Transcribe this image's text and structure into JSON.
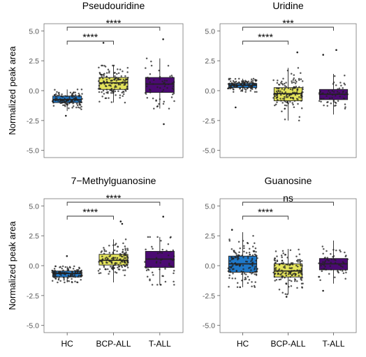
{
  "chart_data": [
    {
      "type": "box",
      "title": "Pseudouridine",
      "ylabel": "Normalized peak area",
      "ylim": [
        -5.6,
        5.6
      ],
      "yticks": [
        -5.0,
        -2.5,
        0.0,
        2.5,
        5.0
      ],
      "categories": [
        "HC",
        "BCP-ALL",
        "T-ALL"
      ],
      "colors": [
        "#1f78c8",
        "#e3e35b",
        "#4b0a72"
      ],
      "boxes": [
        {
          "q1": -1.0,
          "median": -0.75,
          "q3": -0.45,
          "whisker_low": -1.7,
          "whisker_high": 0.1,
          "n": 120
        },
        {
          "q1": 0.1,
          "median": 0.65,
          "q3": 1.1,
          "whisker_low": -1.0,
          "whisker_high": 2.1,
          "n": 140
        },
        {
          "q1": -0.15,
          "median": 0.55,
          "q3": 1.1,
          "whisker_low": -1.5,
          "whisker_high": 2.7,
          "n": 60
        }
      ],
      "outliers": [
        [
          1,
          4.0
        ],
        [
          2,
          4.3
        ],
        [
          2,
          -2.8
        ],
        [
          0,
          -2.1
        ]
      ],
      "comparisons": [
        {
          "from": "HC",
          "to": "BCP-ALL",
          "label": "****"
        },
        {
          "from": "HC",
          "to": "T-ALL",
          "label": "****"
        }
      ]
    },
    {
      "type": "box",
      "title": "Uridine",
      "ylabel": "",
      "ylim": [
        -5.6,
        5.6
      ],
      "yticks": [
        -5.0,
        -2.5,
        0.0,
        2.5,
        5.0
      ],
      "categories": [
        "HC",
        "BCP-ALL",
        "T-ALL"
      ],
      "colors": [
        "#1f78c8",
        "#e3e35b",
        "#4b0a72"
      ],
      "boxes": [
        {
          "q1": 0.25,
          "median": 0.45,
          "q3": 0.6,
          "whisker_low": -0.1,
          "whisker_high": 1.0,
          "n": 120
        },
        {
          "q1": -0.85,
          "median": -0.25,
          "q3": 0.25,
          "whisker_low": -2.5,
          "whisker_high": 1.9,
          "n": 140
        },
        {
          "q1": -0.75,
          "median": -0.3,
          "q3": 0.1,
          "whisker_low": -2.0,
          "whisker_high": 1.4,
          "n": 60
        }
      ],
      "outliers": [
        [
          1,
          3.2
        ],
        [
          2,
          3.4
        ],
        [
          2,
          3.0
        ],
        [
          0,
          -1.4
        ]
      ],
      "comparisons": [
        {
          "from": "HC",
          "to": "BCP-ALL",
          "label": "****"
        },
        {
          "from": "HC",
          "to": "T-ALL",
          "label": "***"
        }
      ]
    },
    {
      "type": "box",
      "title": "7−Methylguanosine",
      "ylabel": "Normalized peak area",
      "ylim": [
        -5.6,
        5.6
      ],
      "yticks": [
        -5.0,
        -2.5,
        0.0,
        2.5,
        5.0
      ],
      "categories": [
        "HC",
        "BCP-ALL",
        "T-ALL"
      ],
      "colors": [
        "#1f78c8",
        "#e3e35b",
        "#4b0a72"
      ],
      "boxes": [
        {
          "q1": -0.95,
          "median": -0.65,
          "q3": -0.45,
          "whisker_low": -1.4,
          "whisker_high": -0.05,
          "n": 120
        },
        {
          "q1": 0.05,
          "median": 0.45,
          "q3": 0.95,
          "whisker_low": -1.4,
          "whisker_high": 2.2,
          "n": 140
        },
        {
          "q1": -0.15,
          "median": 0.55,
          "q3": 1.2,
          "whisker_low": -1.6,
          "whisker_high": 2.4,
          "n": 60
        }
      ],
      "outliers": [
        [
          1,
          3.7
        ],
        [
          1,
          3.5
        ],
        [
          2,
          4.1
        ],
        [
          0,
          0.8
        ]
      ],
      "comparisons": [
        {
          "from": "HC",
          "to": "BCP-ALL",
          "label": "****"
        },
        {
          "from": "HC",
          "to": "T-ALL",
          "label": "****"
        }
      ]
    },
    {
      "type": "box",
      "title": "Guanosine",
      "ylabel": "",
      "ylim": [
        -5.6,
        5.6
      ],
      "yticks": [
        -5.0,
        -2.5,
        0.0,
        2.5,
        5.0
      ],
      "categories": [
        "HC",
        "BCP-ALL",
        "T-ALL"
      ],
      "colors": [
        "#1f78c8",
        "#e3e35b",
        "#4b0a72"
      ],
      "boxes": [
        {
          "q1": -0.55,
          "median": 0.15,
          "q3": 0.8,
          "whisker_low": -1.8,
          "whisker_high": 2.8,
          "n": 140
        },
        {
          "q1": -0.95,
          "median": -0.45,
          "q3": 0.15,
          "whisker_low": -2.4,
          "whisker_high": 1.4,
          "n": 140
        },
        {
          "q1": -0.35,
          "median": 0.15,
          "q3": 0.6,
          "whisker_low": -1.5,
          "whisker_high": 2.1,
          "n": 60
        }
      ],
      "outliers": [
        [
          0,
          3.0
        ],
        [
          2,
          -2.1
        ],
        [
          1,
          -2.6
        ]
      ],
      "comparisons": [
        {
          "from": "HC",
          "to": "BCP-ALL",
          "label": "****"
        },
        {
          "from": "HC",
          "to": "T-ALL",
          "label": "ns"
        }
      ]
    }
  ]
}
